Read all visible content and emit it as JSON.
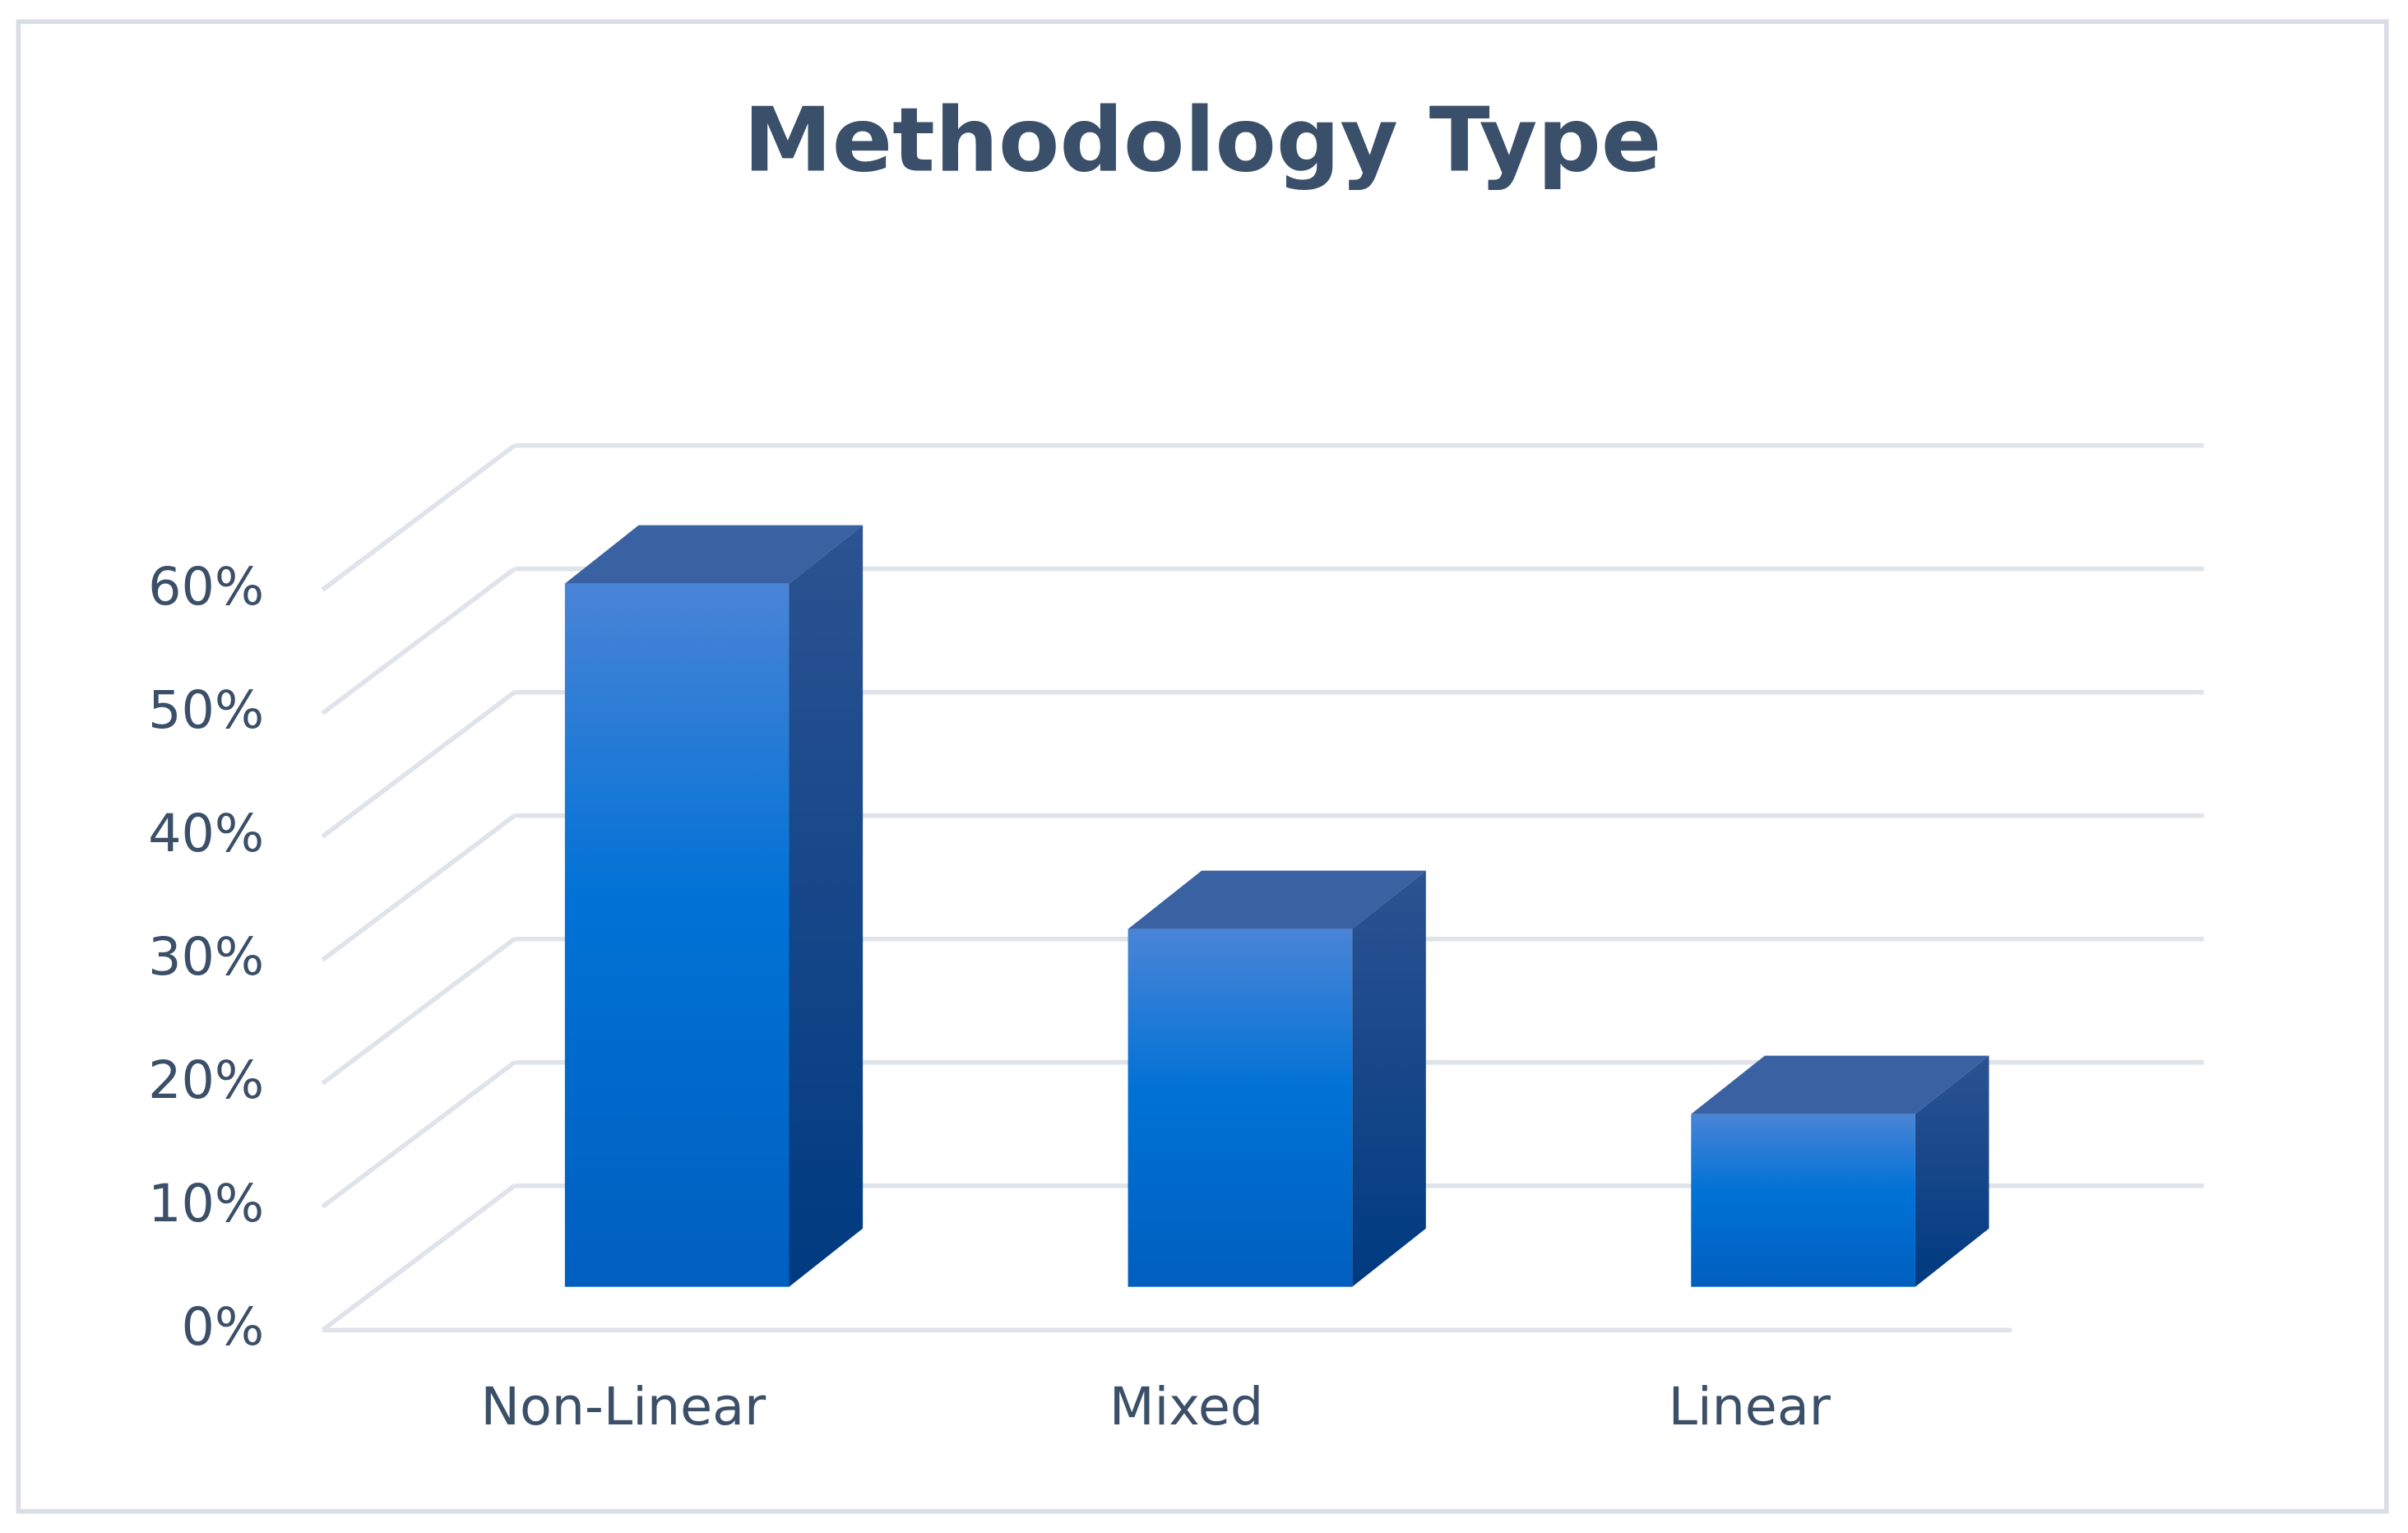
{
  "chart_data": {
    "type": "bar3d",
    "title": "Methodology Type",
    "categories": [
      "Non-Linear",
      "Mixed",
      "Linear"
    ],
    "values": [
      57,
      29,
      14
    ],
    "color": "#0070d0",
    "ylim": [
      0,
      60
    ],
    "yticks": [
      {
        "value": 0,
        "label": "0%"
      },
      {
        "value": 10,
        "label": "10%"
      },
      {
        "value": 20,
        "label": "20%"
      },
      {
        "value": 30,
        "label": "30%"
      },
      {
        "value": 40,
        "label": "40%"
      },
      {
        "value": 50,
        "label": "50%"
      },
      {
        "value": 60,
        "label": "60%"
      }
    ],
    "grid": true
  }
}
